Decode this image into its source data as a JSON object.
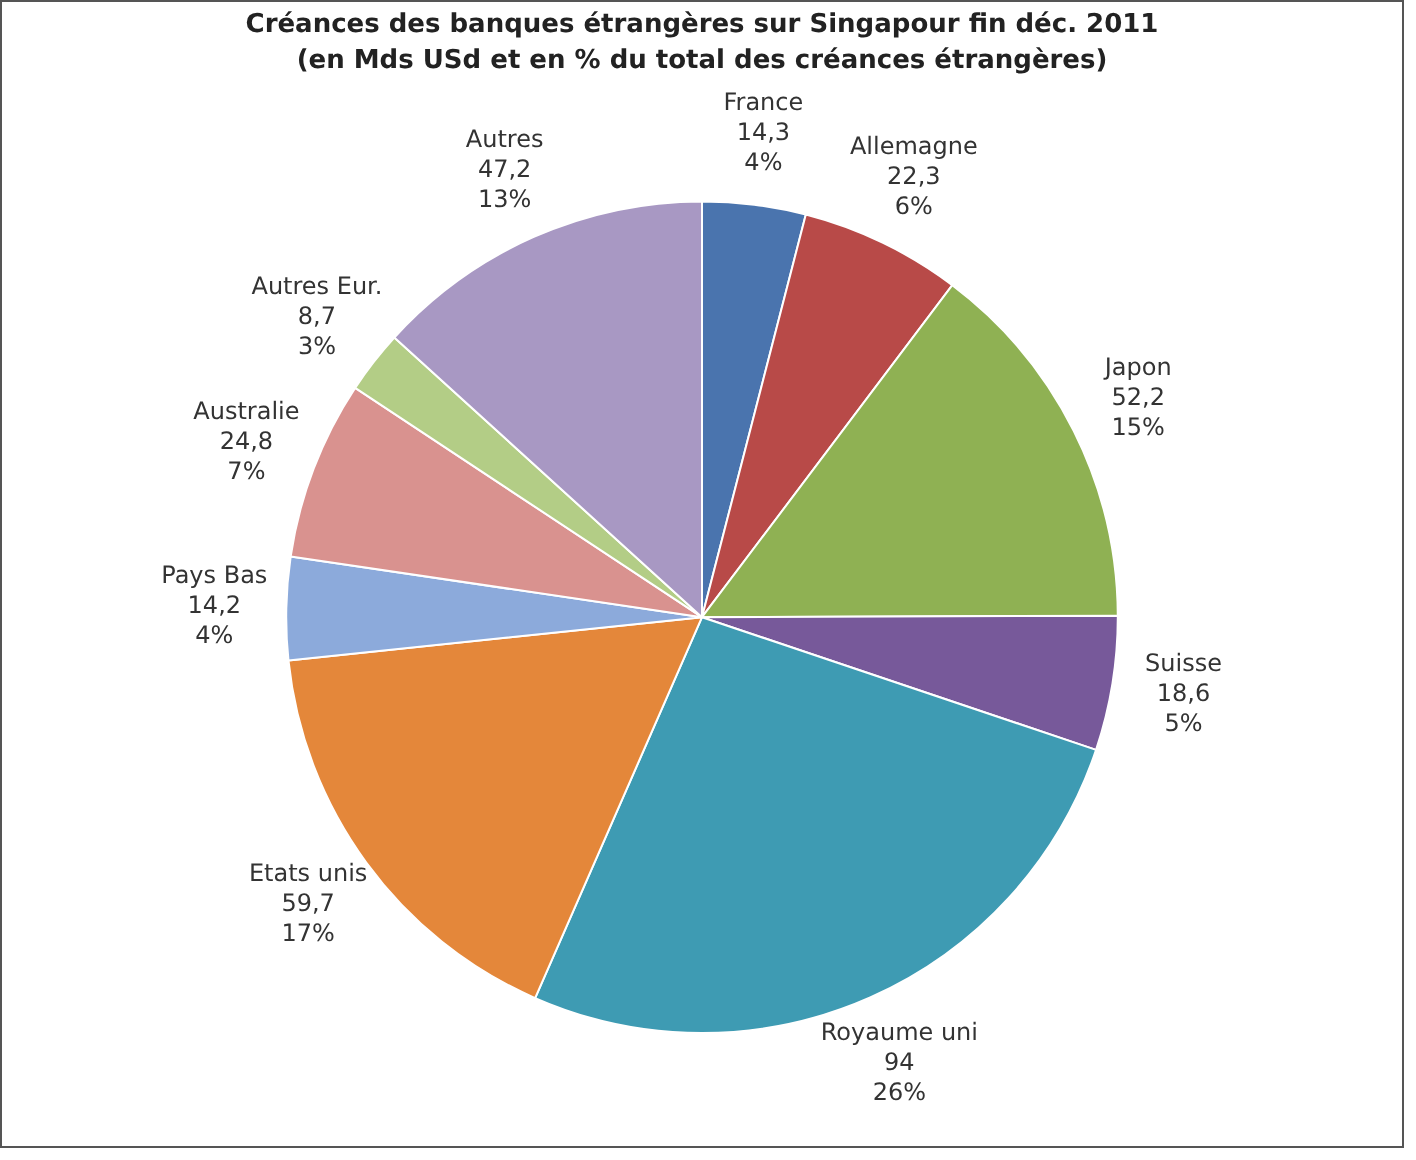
{
  "chart_data": {
    "type": "pie",
    "title": "Créances des banques étrangères sur Singapour fin déc. 2011",
    "subtitle": "(en Mds USd et en % du total des créances étrangères)",
    "categories": [
      "France",
      "Allemagne",
      "Japon",
      "Suisse",
      "Royaume uni",
      "Etats unis",
      "Pays Bas",
      "Australie",
      "Autres Eur.",
      "Autres"
    ],
    "values": [
      14.3,
      22.3,
      52.2,
      18.6,
      94,
      59.7,
      14.2,
      24.8,
      8.7,
      47.2
    ],
    "colors": [
      "#4a74ae",
      "#b84a48",
      "#8fb153",
      "#77599a",
      "#3e9bb3",
      "#e4873a",
      "#8caadb",
      "#d9928f",
      "#b3cd86",
      "#a898c3"
    ],
    "value_labels": [
      "14,3\n4%",
      "22,3\n6%",
      "52,2\n15%",
      "18,6\n5%",
      "94\n26%",
      "59,7\n17%",
      "14,2\n4%",
      "24,8\n7%",
      "8,7\n3%",
      "47,2\n13%"
    ],
    "legend": false
  }
}
